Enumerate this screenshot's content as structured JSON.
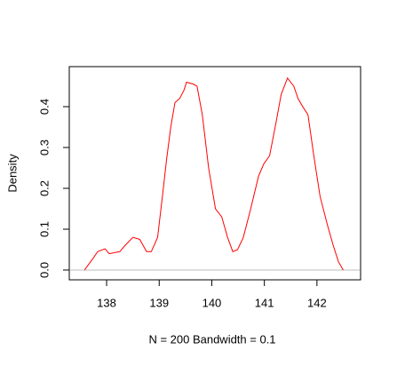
{
  "chart_data": {
    "type": "line",
    "xlabel": "N = 200   Bandwidth = 0.1",
    "ylabel": "Density",
    "x": [
      137.58,
      137.75,
      137.83,
      137.97,
      138.05,
      138.25,
      138.35,
      138.5,
      138.63,
      138.76,
      138.85,
      138.97,
      139.07,
      139.14,
      139.22,
      139.3,
      139.39,
      139.47,
      139.52,
      139.65,
      139.72,
      139.82,
      139.94,
      140.07,
      140.19,
      140.3,
      140.4,
      140.49,
      140.6,
      140.74,
      140.89,
      140.99,
      141.1,
      141.22,
      141.32,
      141.44,
      141.56,
      141.64,
      141.73,
      141.83,
      141.94,
      142.06,
      142.2,
      142.31,
      142.41,
      142.5
    ],
    "series": [
      {
        "color": "#ff0000",
        "values": [
          0.0,
          0.03,
          0.045,
          0.052,
          0.04,
          0.045,
          0.06,
          0.08,
          0.075,
          0.045,
          0.045,
          0.08,
          0.19,
          0.27,
          0.35,
          0.41,
          0.42,
          0.44,
          0.46,
          0.455,
          0.45,
          0.38,
          0.25,
          0.15,
          0.13,
          0.08,
          0.045,
          0.05,
          0.08,
          0.15,
          0.23,
          0.26,
          0.28,
          0.36,
          0.43,
          0.47,
          0.45,
          0.42,
          0.4,
          0.38,
          0.28,
          0.18,
          0.11,
          0.06,
          0.02,
          0.0
        ]
      }
    ],
    "xlim": [
      137.29,
      142.83
    ],
    "ylim": [
      -0.024,
      0.498
    ],
    "xticks": [
      138,
      139,
      140,
      141,
      142
    ],
    "yticks": [
      {
        "value": 0,
        "label": "0.0"
      },
      0.1,
      0.2,
      0.3,
      0.4
    ],
    "zero_line": true
  }
}
